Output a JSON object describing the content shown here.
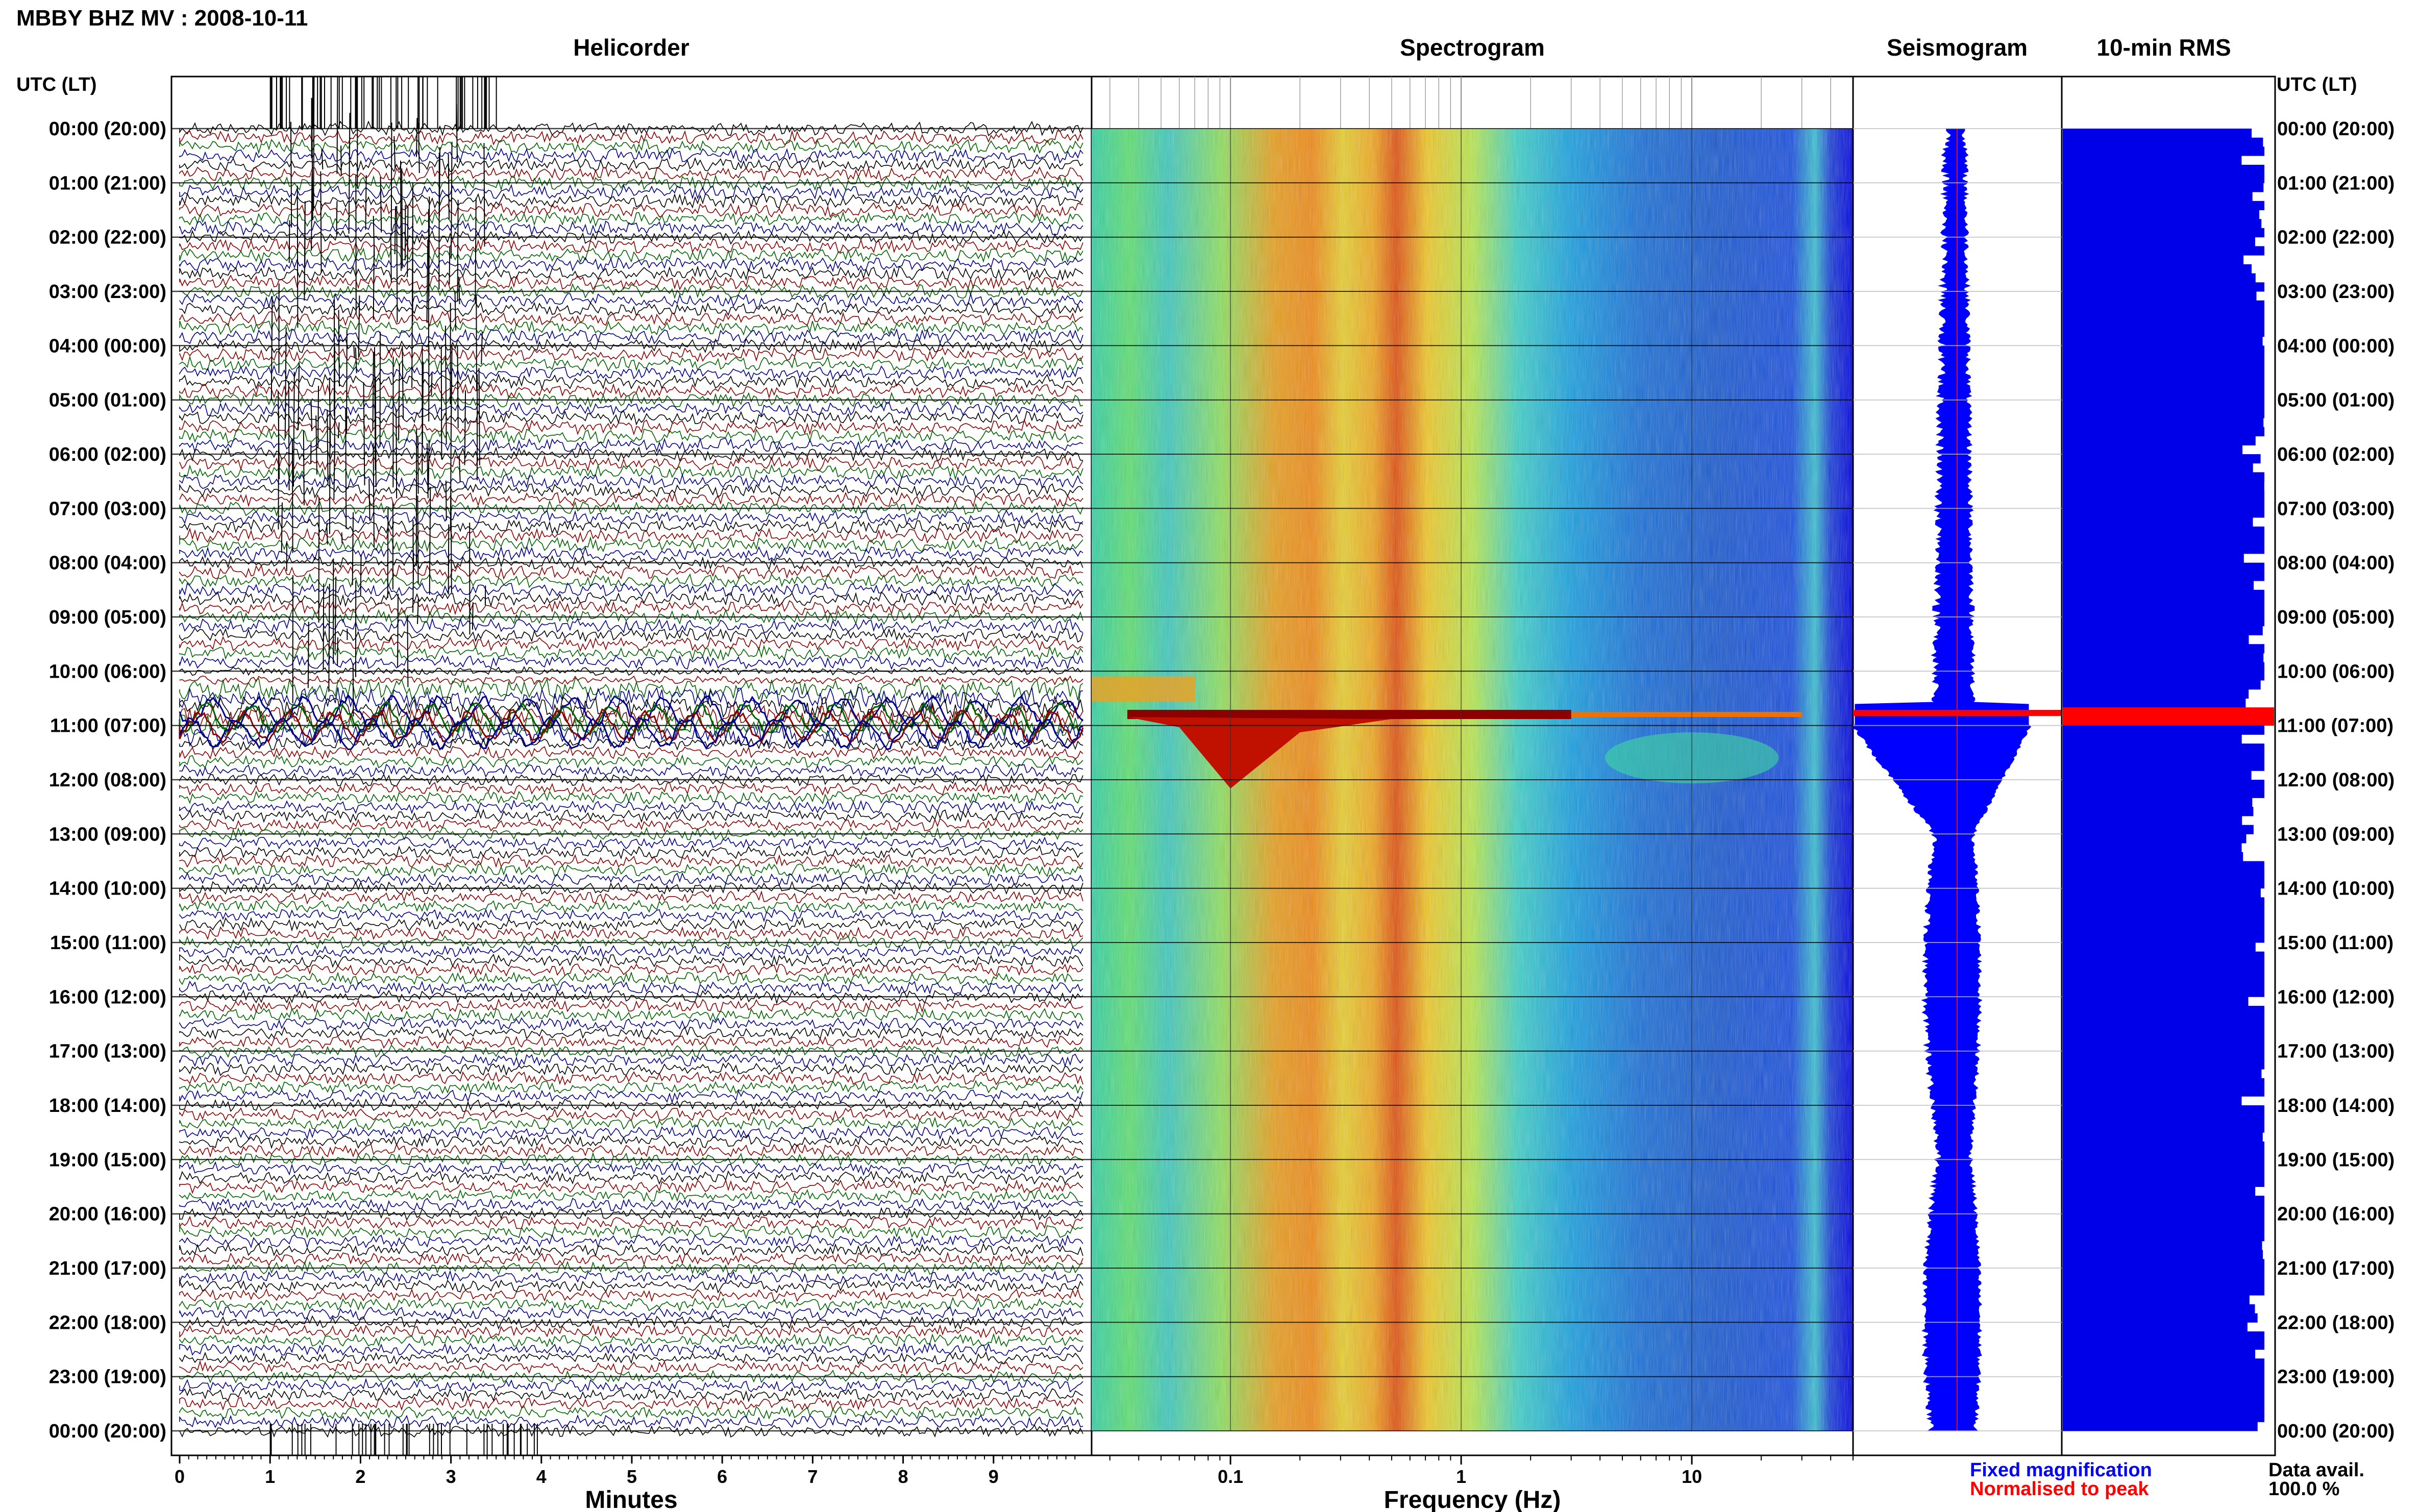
{
  "header": {
    "title": "MBBY BHZ MV : 2008-10-11",
    "utc_label_left": "UTC (LT)",
    "utc_label_right": "UTC (LT)"
  },
  "panels": {
    "helicorder_title": "Helicorder",
    "spectrogram_title": "Spectrogram",
    "seismogram_title": "Seismogram",
    "rms_title": "10-min RMS"
  },
  "time_labels": [
    "00:00 (20:00)",
    "01:00 (21:00)",
    "02:00 (22:00)",
    "03:00 (23:00)",
    "04:00 (00:00)",
    "05:00 (01:00)",
    "06:00 (02:00)",
    "07:00 (03:00)",
    "08:00 (04:00)",
    "09:00 (05:00)",
    "10:00 (06:00)",
    "11:00 (07:00)",
    "12:00 (08:00)",
    "13:00 (09:00)",
    "14:00 (10:00)",
    "15:00 (11:00)",
    "16:00 (12:00)",
    "17:00 (13:00)",
    "18:00 (14:00)",
    "19:00 (15:00)",
    "20:00 (16:00)",
    "21:00 (17:00)",
    "22:00 (18:00)",
    "23:00 (19:00)",
    "00:00 (20:00)"
  ],
  "chart_data": [
    {
      "type": "line",
      "panel": "Helicorder",
      "xlabel": "Minutes",
      "xticks": [
        "0",
        "1",
        "2",
        "3",
        "4",
        "5",
        "6",
        "7",
        "8",
        "9"
      ],
      "xlim": [
        0,
        10
      ],
      "ylim": [
        0,
        24
      ],
      "trace_colors": [
        "#000000",
        "#8b0000",
        "#006400",
        "#00008b"
      ],
      "event_hour": 10.75
    },
    {
      "type": "heatmap",
      "panel": "Spectrogram",
      "xlabel": "Frequency (Hz)",
      "xscale": "log",
      "xticks": [
        "0.1",
        "1",
        "10"
      ],
      "xlim": [
        0.025,
        50
      ],
      "ylim": [
        0,
        24
      ],
      "event_hour": 10.75
    },
    {
      "type": "line",
      "panel": "Seismogram",
      "ylim": [
        0,
        24
      ],
      "legend": [
        "Fixed magnification",
        "Normalised to peak"
      ],
      "legend_colors": [
        "#0000ff",
        "#ff0000"
      ],
      "event_hour": 10.75
    },
    {
      "type": "bar",
      "panel": "10-min RMS",
      "ylim": [
        0,
        24
      ],
      "event_hour": 10.75,
      "data_avail_label": "Data avail.",
      "data_avail_value": "100.0 %"
    }
  ]
}
